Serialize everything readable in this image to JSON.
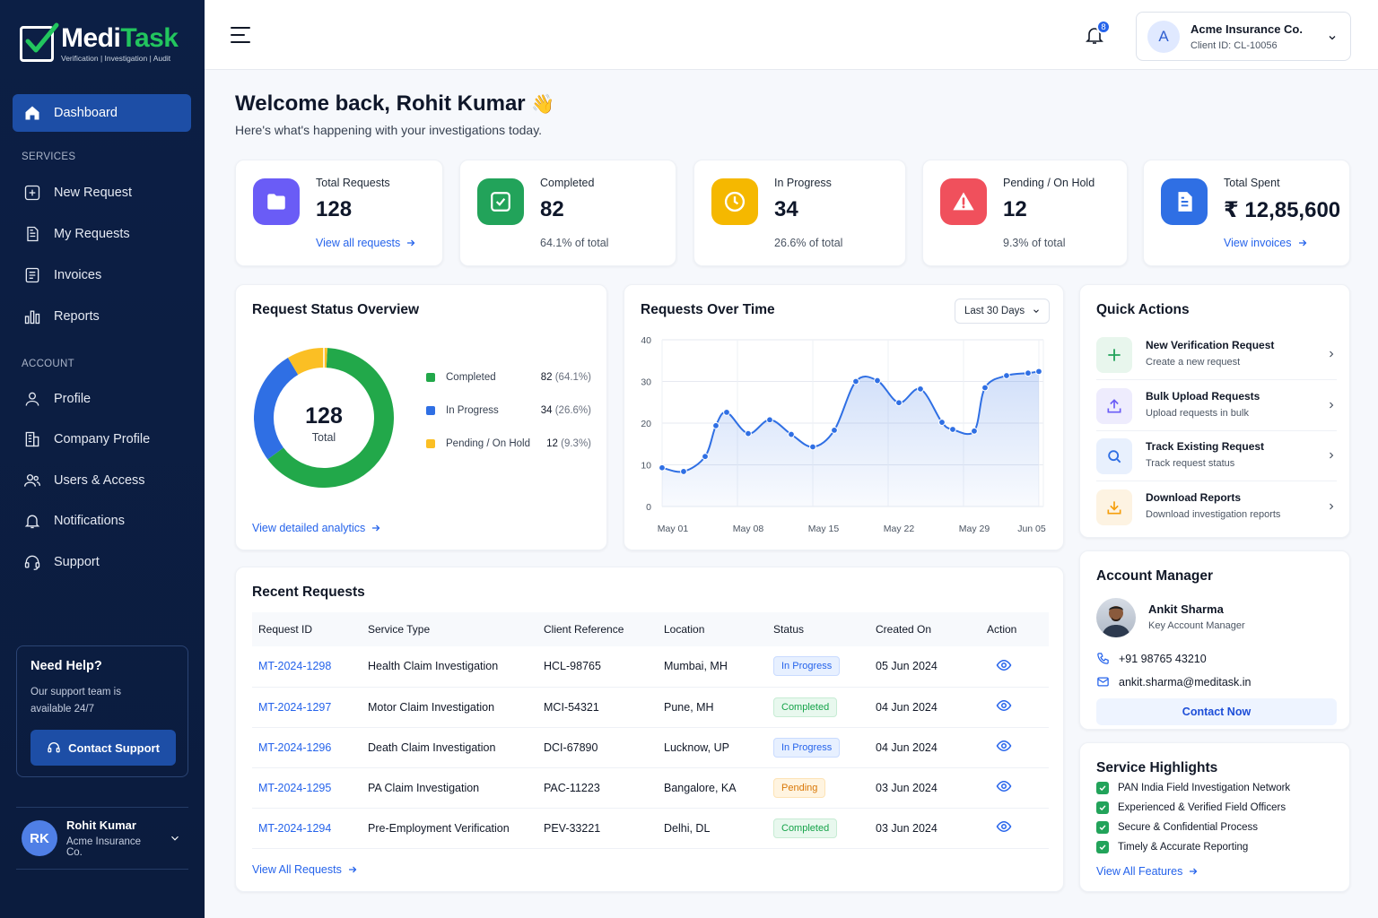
{
  "brand": {
    "name_part1": "Medi",
    "name_part2": "Task",
    "tagline": "Verification | Investigation | Audit"
  },
  "sidebar": {
    "dashboard": "Dashboard",
    "services_heading": "SERVICES",
    "services": [
      "New Request",
      "My Requests",
      "Invoices",
      "Reports"
    ],
    "account_heading": "ACCOUNT",
    "account": [
      "Profile",
      "Company Profile",
      "Users & Access",
      "Notifications",
      "Support"
    ],
    "help": {
      "title": "Need Help?",
      "text": "Our support team is available 24/7",
      "button": "Contact Support"
    },
    "user": {
      "initials": "RK",
      "name": "Rohit Kumar",
      "company": "Acme Insurance Co."
    }
  },
  "topbar": {
    "notification_count": "8",
    "client": {
      "initial": "A",
      "name": "Acme Insurance Co.",
      "id": "Client ID: CL-10056"
    }
  },
  "welcome": {
    "title": "Welcome back, Rohit Kumar",
    "emoji": "👋",
    "subtitle": "Here's what's happening with your investigations today."
  },
  "stats": [
    {
      "label": "Total Requests",
      "value": "128",
      "link": "View all requests",
      "color": "#6a5cf6"
    },
    {
      "label": "Completed",
      "value": "82",
      "sub": "64.1% of total",
      "color": "#22a35a"
    },
    {
      "label": "In Progress",
      "value": "34",
      "sub": "26.6% of total",
      "color": "#f5b800"
    },
    {
      "label": "Pending / On Hold",
      "value": "12",
      "sub": "9.3% of total",
      "color": "#f0505c"
    },
    {
      "label": "Total Spent",
      "value": "₹ 12,85,600",
      "link": "View invoices",
      "color": "#2f6fe4"
    }
  ],
  "status_overview": {
    "title": "Request Status Overview",
    "center_value": "128",
    "center_label": "Total",
    "link": "View detailed analytics",
    "legend": [
      {
        "name": "Completed",
        "count": "82",
        "pct": "(64.1%)",
        "color": "#22a84a"
      },
      {
        "name": "In Progress",
        "count": "34",
        "pct": "(26.6%)",
        "color": "#2f6fe4"
      },
      {
        "name": "Pending / On Hold",
        "count": "12",
        "pct": "(9.3%)",
        "color": "#fbbf24"
      }
    ]
  },
  "chart_data": {
    "type": "line",
    "title": "Requests Over Time",
    "range_select": "Last 30 Days",
    "x_ticks": [
      "May 01",
      "May 08",
      "May 15",
      "May 22",
      "May 29",
      "Jun 05"
    ],
    "y_ticks": [
      "0",
      "10",
      "20",
      "30",
      "40"
    ],
    "ylim": [
      0,
      40
    ],
    "x": [
      "May 01",
      "May 03",
      "May 05",
      "May 06",
      "May 07",
      "May 09",
      "May 11",
      "May 13",
      "May 15",
      "May 17",
      "May 19",
      "May 21",
      "May 23",
      "May 25",
      "May 27",
      "May 28",
      "May 30",
      "May 31",
      "Jun 02",
      "Jun 04",
      "Jun 05"
    ],
    "values": [
      9.3,
      8.4,
      12,
      19.4,
      22.6,
      17.5,
      20.8,
      17.3,
      14.3,
      18.3,
      30,
      30.2,
      24.9,
      28.2,
      20.2,
      18.5,
      18.1,
      28.5,
      31.4,
      32,
      32.4
    ],
    "series_color": "#2f6fe4",
    "grid": true
  },
  "quick_actions": {
    "title": "Quick Actions",
    "items": [
      {
        "title": "New Verification Request",
        "sub": "Create a new request",
        "icon": "plus-icon"
      },
      {
        "title": "Bulk Upload Requests",
        "sub": "Upload requests in bulk",
        "icon": "upload-icon"
      },
      {
        "title": "Track Existing Request",
        "sub": "Track request status",
        "icon": "search-icon"
      },
      {
        "title": "Download Reports",
        "sub": "Download investigation reports",
        "icon": "download-icon"
      }
    ]
  },
  "recent_requests": {
    "title": "Recent Requests",
    "columns": [
      "Request ID",
      "Service Type",
      "Client Reference",
      "Location",
      "Status",
      "Created On",
      "Action"
    ],
    "rows": [
      {
        "id": "MT-2024-1298",
        "service": "Health Claim Investigation",
        "ref": "HCL-98765",
        "location": "Mumbai, MH",
        "status": "In Progress",
        "status_key": "inprogress",
        "created": "05 Jun 2024"
      },
      {
        "id": "MT-2024-1297",
        "service": "Motor Claim Investigation",
        "ref": "MCI-54321",
        "location": "Pune, MH",
        "status": "Completed",
        "status_key": "completed",
        "created": "04 Jun 2024"
      },
      {
        "id": "MT-2024-1296",
        "service": "Death Claim Investigation",
        "ref": "DCI-67890",
        "location": "Lucknow, UP",
        "status": "In Progress",
        "status_key": "inprogress",
        "created": "04 Jun 2024"
      },
      {
        "id": "MT-2024-1295",
        "service": "PA Claim Investigation",
        "ref": "PAC-11223",
        "location": "Bangalore, KA",
        "status": "Pending",
        "status_key": "pending",
        "created": "03 Jun 2024"
      },
      {
        "id": "MT-2024-1294",
        "service": "Pre-Employment Verification",
        "ref": "PEV-33221",
        "location": "Delhi, DL",
        "status": "Completed",
        "status_key": "completed",
        "created": "03 Jun 2024"
      }
    ],
    "link": "View All Requests"
  },
  "account_manager": {
    "title": "Account Manager",
    "name": "Ankit Sharma",
    "role": "Key Account Manager",
    "phone": "+91 98765 43210",
    "email": "ankit.sharma@meditask.in",
    "button": "Contact Now"
  },
  "highlights": {
    "title": "Service Highlights",
    "items": [
      "PAN India Field Investigation Network",
      "Experienced & Verified Field Officers",
      "Secure & Confidential Process",
      "Timely & Accurate Reporting"
    ],
    "link": "View All Features"
  }
}
